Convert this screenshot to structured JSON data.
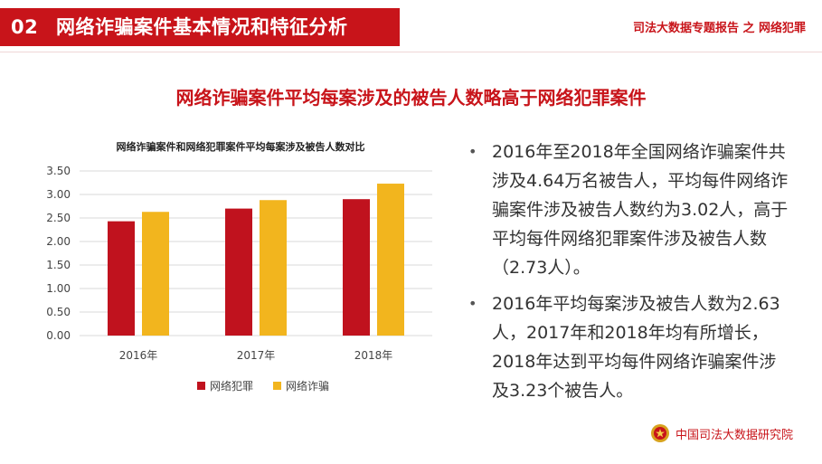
{
  "header": {
    "number": "02",
    "title": "网络诈骗案件基本情况和特征分析",
    "report_tag": "司法大数据专题报告 之 网络犯罪"
  },
  "main_title": "网络诈骗案件平均每案涉及的被告人数略高于网络犯罪案件",
  "chart_data": {
    "type": "bar",
    "title": "网络诈骗案件和网络犯罪案件平均每案涉及被告人数对比",
    "categories": [
      "2016年",
      "2017年",
      "2018年"
    ],
    "series": [
      {
        "name": "网络犯罪",
        "color": "#c0121e",
        "values": [
          2.43,
          2.7,
          2.9
        ]
      },
      {
        "name": "网络诈骗",
        "color": "#f2b51e",
        "values": [
          2.63,
          2.88,
          3.23
        ]
      }
    ],
    "yticks": [
      "0.00",
      "0.50",
      "1.00",
      "1.50",
      "2.00",
      "2.50",
      "3.00",
      "3.50"
    ],
    "ylim": [
      0,
      3.5
    ],
    "grid": true,
    "legend_position": "bottom"
  },
  "bullets": [
    "2016年至2018年全国网络诈骗案件共涉及4.64万名被告人，平均每件网络诈骗案件涉及被告人数约为3.02人，高于平均每件网络犯罪案件涉及被告人数（2.73人）。",
    "2016年平均每案涉及被告人数为2.63人，2017年和2018年均有所增长，2018年达到平均每件网络诈骗案件涉及3.23个被告人。"
  ],
  "bullet_marker": "•",
  "footer": {
    "institute": "中国司法大数据研究院",
    "emblem_icon": "court-emblem-icon"
  }
}
